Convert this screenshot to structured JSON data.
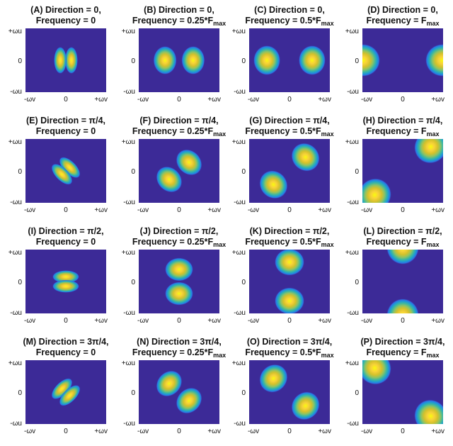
{
  "chart_data": {
    "type": "heatmap",
    "colormap": "parula",
    "background_color": "#3c2a97",
    "panel_labels": {
      "x_ticks": [
        "-ωv",
        "0",
        "+ωv"
      ],
      "y_ticks": [
        "+ωu",
        "0",
        "-ωu"
      ]
    },
    "panels": [
      {
        "title1": "(A) Direction = 0,",
        "title2": "Frequency = 0",
        "direction_deg": 0,
        "frequency_fraction": 0
      },
      {
        "title1": "(B) Direction = 0,",
        "title2": "Frequency = 0.25*F",
        "title2_sub": "max",
        "direction_deg": 0,
        "frequency_fraction": 0.25
      },
      {
        "title1": "(C) Direction = 0,",
        "title2": "Frequency = 0.5*F",
        "title2_sub": "max",
        "direction_deg": 0,
        "frequency_fraction": 0.5
      },
      {
        "title1": "(D) Direction = 0,",
        "title2": "Frequency = F",
        "title2_sub": "max",
        "direction_deg": 0,
        "frequency_fraction": 1
      },
      {
        "title1": "(E) Direction = π/4,",
        "title2": "Frequency = 0",
        "direction_deg": 45,
        "frequency_fraction": 0
      },
      {
        "title1": "(F) Direction = π/4,",
        "title2": "Frequency = 0.25*F",
        "title2_sub": "max",
        "direction_deg": 45,
        "frequency_fraction": 0.25
      },
      {
        "title1": "(G) Direction = π/4,",
        "title2": "Frequency = 0.5*F",
        "title2_sub": "max",
        "direction_deg": 45,
        "frequency_fraction": 0.5
      },
      {
        "title1": "(H) Direction = π/4,",
        "title2": "Frequency = F",
        "title2_sub": "max",
        "direction_deg": 45,
        "frequency_fraction": 1
      },
      {
        "title1": "(I) Direction = π/2,",
        "title2": "Frequency = 0",
        "direction_deg": 90,
        "frequency_fraction": 0
      },
      {
        "title1": "(J) Direction = π/2,",
        "title2": "Frequency = 0.25*F",
        "title2_sub": "max",
        "direction_deg": 90,
        "frequency_fraction": 0.25
      },
      {
        "title1": "(K) Direction = π/2,",
        "title2": "Frequency = 0.5*F",
        "title2_sub": "max",
        "direction_deg": 90,
        "frequency_fraction": 0.5
      },
      {
        "title1": "(L) Direction = π/2,",
        "title2": "Frequency = F",
        "title2_sub": "max",
        "direction_deg": 90,
        "frequency_fraction": 1
      },
      {
        "title1": "(M) Direction = 3π/4,",
        "title2": "Frequency = 0",
        "direction_deg": 135,
        "frequency_fraction": 0
      },
      {
        "title1": "(N) Direction = 3π/4,",
        "title2": "Frequency = 0.25*F",
        "title2_sub": "max",
        "direction_deg": 135,
        "frequency_fraction": 0.25
      },
      {
        "title1": "(O) Direction = 3π/4,",
        "title2": "Frequency = 0.5*F",
        "title2_sub": "max",
        "direction_deg": 135,
        "frequency_fraction": 0.5
      },
      {
        "title1": "(P) Direction = 3π/4,",
        "title2": "Frequency = F",
        "title2_sub": "max",
        "direction_deg": 135,
        "frequency_fraction": 1
      }
    ]
  }
}
